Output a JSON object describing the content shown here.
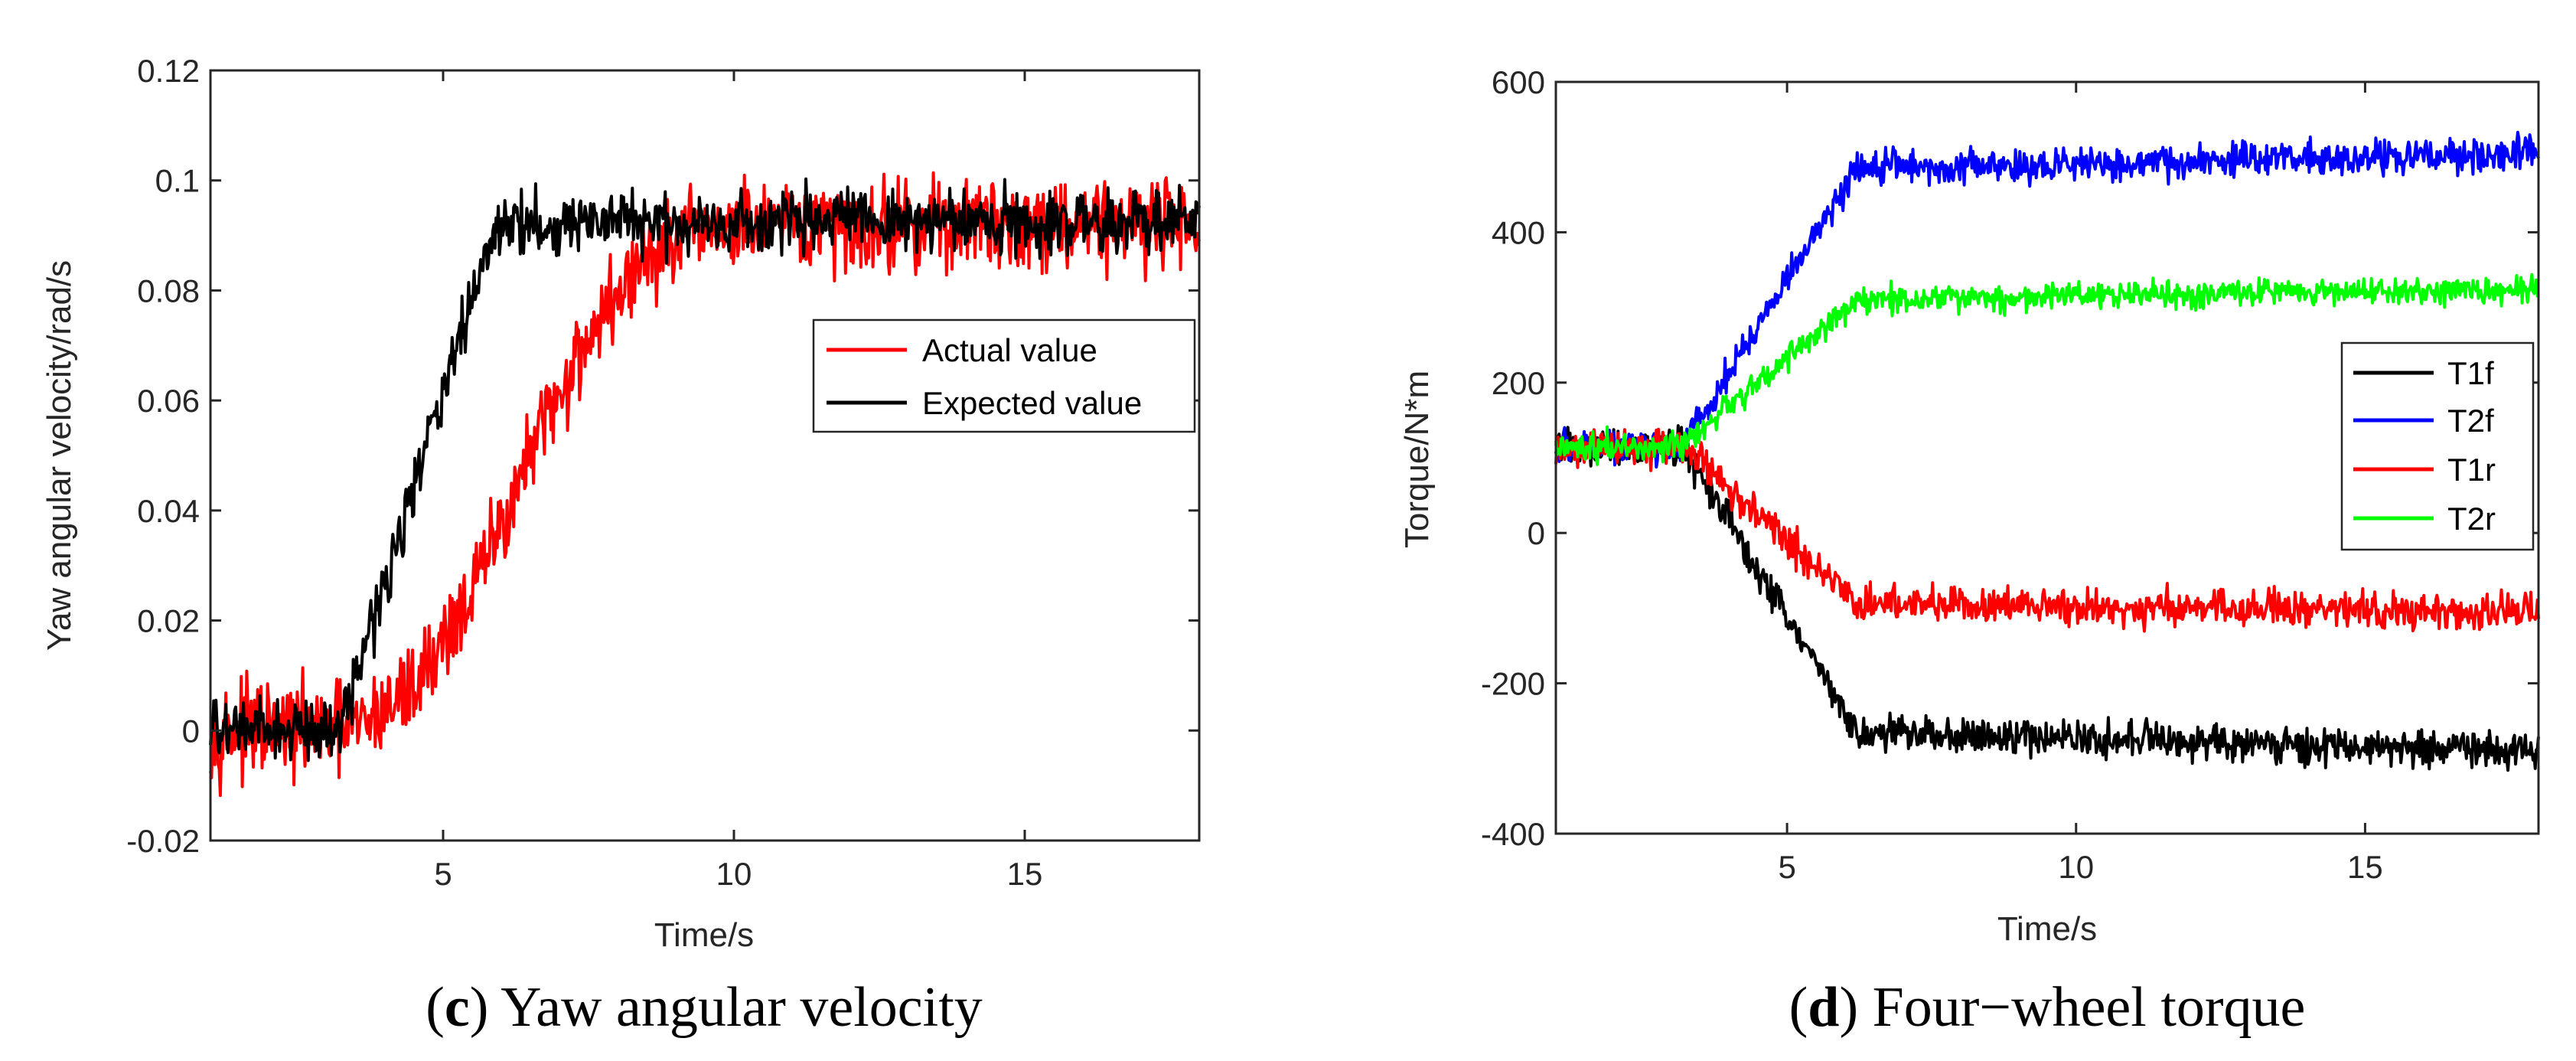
{
  "chart_data": [
    {
      "type": "line",
      "caption_letter": "c",
      "caption_text": "Yaw angular velocity",
      "xlabel": "Time/s",
      "ylabel": "Yaw angular velocity/rad/s",
      "xlim": [
        1,
        18
      ],
      "ylim": [
        -0.02,
        0.12
      ],
      "xticks": [
        5,
        10,
        15
      ],
      "xtick_labels": [
        "5",
        "10",
        "15"
      ],
      "yticks": [
        -0.02,
        0,
        0.02,
        0.04,
        0.06,
        0.08,
        0.1,
        0.12
      ],
      "ytick_labels": [
        "-0.02",
        "0",
        "0.02",
        "0.04",
        "0.06",
        "0.08",
        "0.1",
        "0.12"
      ],
      "legend_position": "center-right",
      "series": [
        {
          "name": "Actual value",
          "color": "#ff0000",
          "noise": 0.0045,
          "points": [
            [
              1,
              0.0
            ],
            [
              3.5,
              0.0
            ],
            [
              4.5,
              0.008
            ],
            [
              5.5,
              0.025
            ],
            [
              6.5,
              0.05
            ],
            [
              7.5,
              0.072
            ],
            [
              8.5,
              0.086
            ],
            [
              9.5,
              0.091
            ],
            [
              18,
              0.093
            ]
          ]
        },
        {
          "name": "Expected value",
          "color": "#000000",
          "noise": 0.003,
          "points": [
            [
              1,
              0.0
            ],
            [
              3.2,
              0.0
            ],
            [
              5.9,
              0.092
            ],
            [
              18,
              0.093
            ]
          ]
        }
      ]
    },
    {
      "type": "line",
      "caption_letter": "d",
      "caption_text": "Four−wheel torque",
      "xlabel": "Time/s",
      "ylabel": "Torque/N*m",
      "xlim": [
        1,
        18
      ],
      "ylim": [
        -400,
        600
      ],
      "xticks": [
        5,
        10,
        15
      ],
      "xtick_labels": [
        "5",
        "10",
        "15"
      ],
      "yticks": [
        -400,
        -200,
        0,
        200,
        400,
        600
      ],
      "ytick_labels": [
        "-400",
        "-200",
        "0",
        "200",
        "400",
        "600"
      ],
      "legend_position": "center-right",
      "series": [
        {
          "name": "T1f",
          "color": "#000000",
          "noise": 13,
          "points": [
            [
              1,
              115
            ],
            [
              3.2,
              115
            ],
            [
              6.2,
              -265
            ],
            [
              18,
              -290
            ]
          ]
        },
        {
          "name": "T2f",
          "color": "#0000ff",
          "noise": 12,
          "points": [
            [
              1,
              115
            ],
            [
              3.2,
              115
            ],
            [
              6.2,
              485
            ],
            [
              18,
              505
            ]
          ]
        },
        {
          "name": "T1r",
          "color": "#ff0000",
          "noise": 13,
          "points": [
            [
              1,
              115
            ],
            [
              3.2,
              115
            ],
            [
              6.2,
              -95
            ],
            [
              18,
              -105
            ]
          ]
        },
        {
          "name": "T2r",
          "color": "#00ff00",
          "noise": 10,
          "points": [
            [
              1,
              115
            ],
            [
              3.2,
              115
            ],
            [
              6.2,
              310
            ],
            [
              18,
              325
            ]
          ]
        }
      ]
    }
  ]
}
